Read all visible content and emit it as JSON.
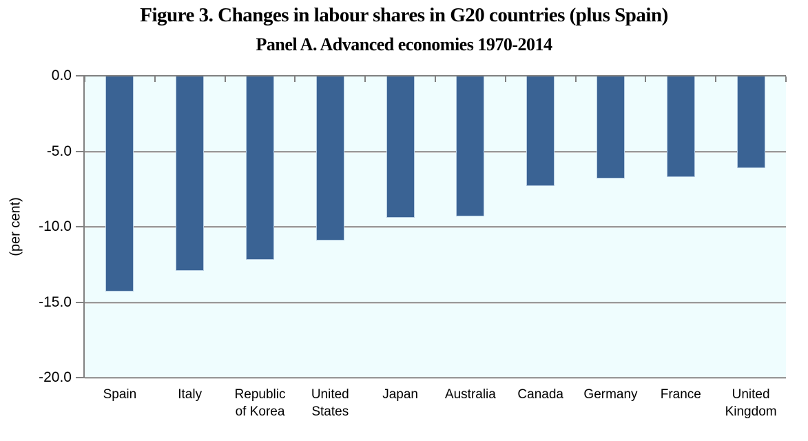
{
  "figure": {
    "title": "Figure 3. Changes in labour shares in G20 countries (plus Spain)",
    "subtitle": "Panel A. Advanced economies 1970-2014"
  },
  "chart_data": {
    "type": "bar",
    "title": "Figure 3. Changes in labour shares in G20 countries (plus Spain)",
    "subtitle": "Panel A. Advanced economies 1970-2014",
    "categories": [
      "Spain",
      "Italy",
      "Republic of Korea",
      "United States",
      "Japan",
      "Australia",
      "Canada",
      "Germany",
      "France",
      "United Kingdom"
    ],
    "xtick_labels": [
      "Spain",
      "Italy",
      "Republic\nof Korea",
      "United\nStates",
      "Japan",
      "Australia",
      "Canada",
      "Germany",
      "France",
      "United\nKingdom"
    ],
    "values": [
      -14.3,
      -12.9,
      -12.2,
      -10.9,
      -9.4,
      -9.3,
      -7.3,
      -6.8,
      -6.7,
      -6.1
    ],
    "xlabel": "",
    "ylabel": "(per cent)",
    "ylim": [
      -20,
      0
    ],
    "yticks": [
      0,
      -5,
      -10,
      -15,
      -20
    ],
    "ytick_labels": [
      "0.0",
      "-5.0",
      "-10.0",
      "-15.0",
      "-20.0"
    ],
    "grid": true,
    "legend": false,
    "colors": {
      "bar_fill": "#3A6394",
      "bar_border": "#B7CDE2",
      "plot_bg": "#EFFDFE",
      "gridline": "#9A9A9A",
      "axis": "#808080",
      "text": "#000000"
    }
  }
}
